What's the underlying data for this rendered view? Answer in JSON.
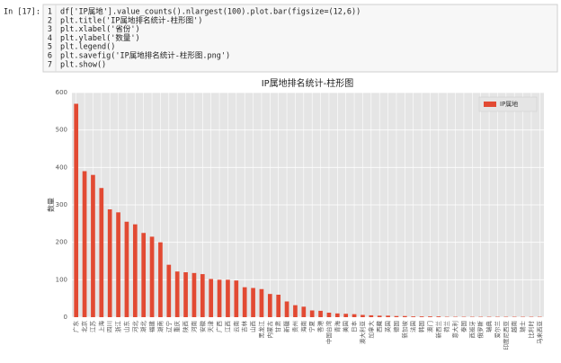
{
  "cell": {
    "prompt": "In [17]:",
    "line_numbers": [
      1,
      2,
      3,
      4,
      5,
      6,
      7
    ],
    "lines": [
      "df['IP属地'].value_counts().nlargest(100).plot.bar(figsize=(12,6))",
      "plt.title('IP属地排名统计-柱形图')",
      "plt.xlabel('省份')",
      "plt.ylabel('数量')",
      "plt.legend()",
      "plt.savefig('IP属地排名统计-柱形图.png')",
      "plt.show()"
    ]
  },
  "chart_data": {
    "type": "bar",
    "title": "IP属地排名统计-柱形图",
    "y_label": "数量",
    "categories": [
      "广东",
      "北京",
      "江苏",
      "上海",
      "四川",
      "浙江",
      "山东",
      "河北",
      "湖北",
      "福建",
      "湖南",
      "辽宁",
      "重庆",
      "陕西",
      "河南",
      "安徽",
      "天津",
      "广西",
      "江西",
      "云南",
      "吉林",
      "山西",
      "黑龙江",
      "内蒙古",
      "甘肃",
      "新疆",
      "贵州",
      "海南",
      "宁夏",
      "香港",
      "中国台湾",
      "青海",
      "美国",
      "日本",
      "澳大利亚",
      "加拿大",
      "西藏",
      "英国",
      "德国",
      "新加坡",
      "法国",
      "韩国",
      "澳门",
      "新西兰",
      "荷兰",
      "意大利",
      "泰国",
      "西班牙",
      "俄罗斯",
      "瑞典",
      "爱尔兰",
      "印度尼西亚",
      "越南",
      "瑞士",
      "比利时",
      "马来西亚"
    ],
    "series": [
      {
        "name": "IP属地",
        "color": "#e24a33",
        "values": [
          570,
          390,
          380,
          345,
          288,
          280,
          255,
          248,
          225,
          215,
          200,
          140,
          122,
          120,
          118,
          115,
          102,
          100,
          100,
          98,
          80,
          78,
          75,
          62,
          60,
          42,
          32,
          28,
          18,
          17,
          12,
          10,
          9,
          8,
          6,
          5,
          4,
          4,
          3,
          3,
          2,
          2,
          2,
          2,
          1,
          1,
          1,
          1,
          1,
          1,
          1,
          1,
          1,
          1,
          1,
          1
        ]
      }
    ],
    "ylim": [
      0,
      600
    ],
    "yticks": [
      0,
      100,
      200,
      300,
      400,
      500,
      600
    ],
    "grid": true,
    "legend": "upper right"
  }
}
